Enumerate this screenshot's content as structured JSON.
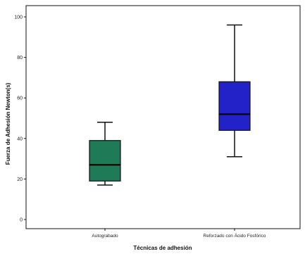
{
  "chart_data": {
    "type": "boxplot",
    "title": "",
    "xlabel": "Técnicas de adhesión",
    "ylabel": "Fuerza de Adhesión Newton(s)",
    "ylim": [
      -4,
      104
    ],
    "yticks": [
      0,
      20,
      40,
      60,
      80,
      100
    ],
    "grid": false,
    "categories": [
      "Autograbado",
      "Reforzado con Ácido Fosfórico"
    ],
    "boxes": [
      {
        "category": "Autograbado",
        "min": 17,
        "q1": 19,
        "median": 27,
        "q3": 39,
        "max": 48,
        "color": "#1f7a58"
      },
      {
        "category": "Reforzado con Ácido Fosfórico",
        "min": 31,
        "q1": 44,
        "median": 52,
        "q3": 68,
        "max": 96,
        "color": "#2222c8"
      }
    ]
  }
}
